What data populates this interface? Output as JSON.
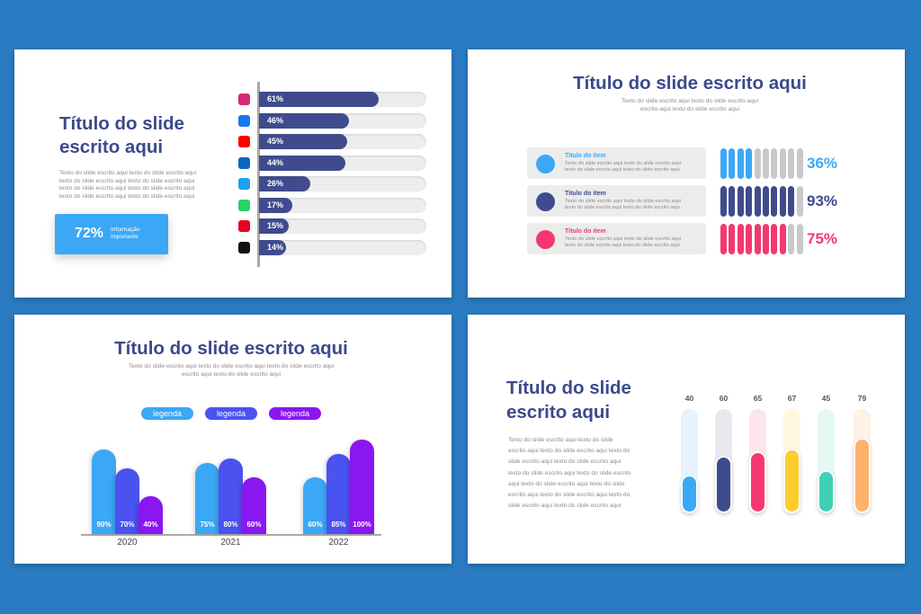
{
  "slide1": {
    "title_line1": "Título do slide",
    "title_line2": "escrito aqui",
    "body": [
      "Texto do slide escrito aqui texto do slide escrito aqui",
      "texto do slide escrito aqui texto do slide escrito aqui",
      "texto do slide escrito aqui texto do slide escrito aqui",
      "texto do slide escrito aqui texto do slide escrito aqui"
    ],
    "highlight_value": "72%",
    "highlight_label_line1": "Informação",
    "highlight_label_line2": "importante",
    "colors": {
      "bar": "#3f4b8d",
      "highlight": "#3ba8f5"
    }
  },
  "slide2": {
    "title": "Título do slide escrito aqui",
    "body": [
      "Texto do slide escrito aqui texto do slide escrito aqui",
      "escrito aqui texto do slide escrito aqui"
    ],
    "items": [
      {
        "title": "Titulo do item",
        "text1": "Texto do slide escrito aqui texto do slide escrito aqui",
        "text2": "texto do slide escrito aqui texto do slide escrito aqui",
        "color": "#3ba8f5"
      },
      {
        "title": "Titulo do item",
        "text1": "Texto do slide escrito aqui texto do slide escrito aqui",
        "text2": "texto do slide escrito aqui texto do slide escrito aqui",
        "color": "#3f4b8d"
      },
      {
        "title": "Titulo do item",
        "text1": "Texto do slide escrito aqui texto do slide escrito aqui",
        "text2": "texto do slide escrito aqui texto do slide escrito aqui",
        "color": "#f43870"
      }
    ]
  },
  "slide3": {
    "title": "Título do slide escrito aqui",
    "body": [
      "Texto do slide escrito aqui texto do slide escrito aqui texto do slide escrito aqui",
      "escrito aqui texto do slide escrito aqui"
    ]
  },
  "slide4": {
    "title_line1": "Título do slide",
    "title_line2": "escrito aqui",
    "body": [
      "Texto do slide escrito aqui texto do slide",
      "escrito aqui texto do slide escrito aqui texto do",
      "slide escrito aqui texto do slide escrito aqui",
      "texto do slide escrito aqui texto do slide escrito",
      "aqui texto do slide escrito aqui texto do slide",
      "escrito aqui texto do slide escrito aqui texto do",
      "slide escrito aqui texto do slide escrito aqui"
    ]
  },
  "chart_data": [
    {
      "type": "bar",
      "orientation": "horizontal",
      "categories": [
        "instagram-icon",
        "facebook-icon",
        "youtube-icon",
        "linkedin-icon",
        "twitter-icon",
        "whatsapp-icon",
        "pinterest-icon",
        "tiktok-icon"
      ],
      "values": [
        61,
        46,
        45,
        44,
        26,
        17,
        15,
        14
      ],
      "labels": [
        "61%",
        "46%",
        "45%",
        "44%",
        "26%",
        "17%",
        "15%",
        "14%"
      ],
      "xlim": [
        0,
        100
      ],
      "icon_colors": [
        "#d62976",
        "#1877f2",
        "#ff0000",
        "#0a66c2",
        "#1da1f2",
        "#25d366",
        "#e60023",
        "#111111"
      ]
    },
    {
      "type": "bar",
      "style": "segmented-pills",
      "segments": 10,
      "values": [
        36,
        93,
        75
      ],
      "labels": [
        "36%",
        "93%",
        "75%"
      ],
      "colors": [
        "#3ba8f5",
        "#3f4b8d",
        "#f43870"
      ],
      "inactive_color": "#c9c9c9"
    },
    {
      "type": "bar",
      "categories": [
        "2020",
        "2021",
        "2022"
      ],
      "legend": [
        "legenda",
        "legenda",
        "legenda"
      ],
      "legend_colors": [
        "#3ba8f5",
        "#4a52f0",
        "#8a16f0"
      ],
      "series": [
        {
          "values": [
            90,
            75,
            60
          ],
          "labels": [
            "90%",
            "75%",
            "60%"
          ],
          "color": "#3ba8f5"
        },
        {
          "values": [
            70,
            80,
            85
          ],
          "labels": [
            "70%",
            "80%",
            "85%"
          ],
          "color": "#4a52f0"
        },
        {
          "values": [
            40,
            60,
            100
          ],
          "labels": [
            "40%",
            "60%",
            "100%"
          ],
          "color": "#8a16f0"
        }
      ],
      "ylim": [
        0,
        100
      ]
    },
    {
      "type": "bar",
      "style": "vertical-progress",
      "values": [
        40,
        60,
        65,
        67,
        45,
        79
      ],
      "labels": [
        "40",
        "60",
        "65",
        "67",
        "45",
        "79"
      ],
      "ylim": [
        0,
        100
      ],
      "colors": [
        "#3ba8f5",
        "#3f4b8d",
        "#f43870",
        "#ffcc2e",
        "#3fd0b6",
        "#ffb26b"
      ],
      "track_colors": [
        "#e6f3fd",
        "#e7e8ef",
        "#fde5ec",
        "#fff7df",
        "#e4f8f4",
        "#fff1e4"
      ]
    }
  ]
}
